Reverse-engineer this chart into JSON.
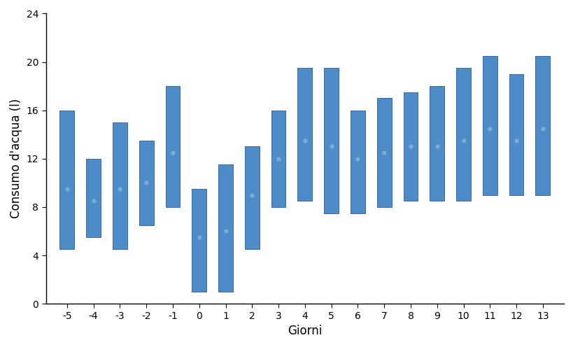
{
  "days": [
    -5,
    -4,
    -3,
    -2,
    -1,
    0,
    1,
    2,
    3,
    4,
    5,
    6,
    7,
    8,
    9,
    10,
    11,
    12,
    13
  ],
  "bar_bottoms": [
    4.5,
    5.5,
    4.5,
    6.5,
    8.0,
    1.0,
    1.0,
    4.5,
    8.0,
    8.5,
    7.5,
    7.5,
    8.0,
    8.5,
    8.5,
    8.5,
    9.0,
    9.0,
    9.0
  ],
  "bar_tops": [
    16.0,
    12.0,
    15.0,
    13.5,
    18.0,
    9.5,
    11.5,
    13.0,
    16.0,
    19.5,
    19.5,
    16.0,
    17.0,
    17.5,
    18.0,
    19.5,
    20.5,
    19.0,
    20.5
  ],
  "means": [
    9.5,
    8.5,
    9.5,
    10.0,
    12.5,
    5.5,
    6.0,
    9.0,
    12.0,
    13.5,
    13.0,
    12.0,
    12.5,
    13.0,
    13.0,
    13.5,
    14.5,
    13.5,
    14.5
  ],
  "bar_color": "#4d8cc8",
  "mean_dot_color": "#7aaed6",
  "ylabel": "Consumo d'acqua (l)",
  "xlabel": "Giorni",
  "ylim": [
    0,
    24
  ],
  "yticks": [
    0,
    4,
    8,
    12,
    16,
    20,
    24
  ],
  "bar_width": 0.55,
  "xlim_left": -5.8,
  "xlim_right": 13.8
}
